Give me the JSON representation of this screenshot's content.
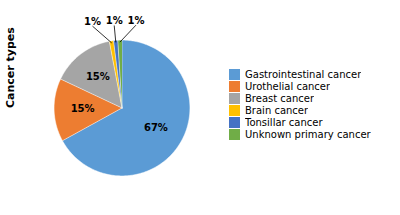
{
  "chart_data": {
    "type": "pie",
    "ylabel": "Cancer types",
    "categories": [
      "Gastrointestinal cancer",
      "Urothelial cancer",
      "Breast cancer",
      "Brain cancer",
      "Tonsillar cancer",
      "Unknown primary cancer"
    ],
    "values": [
      67,
      15,
      15,
      1,
      1,
      1
    ],
    "value_labels": [
      "67%",
      "15%",
      "15%",
      "1%",
      "1%",
      "1%"
    ],
    "colors": [
      "#5B9BD5",
      "#ED7D31",
      "#A5A5A5",
      "#FFC000",
      "#4472C4",
      "#70AD47"
    ],
    "data_labels": true
  }
}
